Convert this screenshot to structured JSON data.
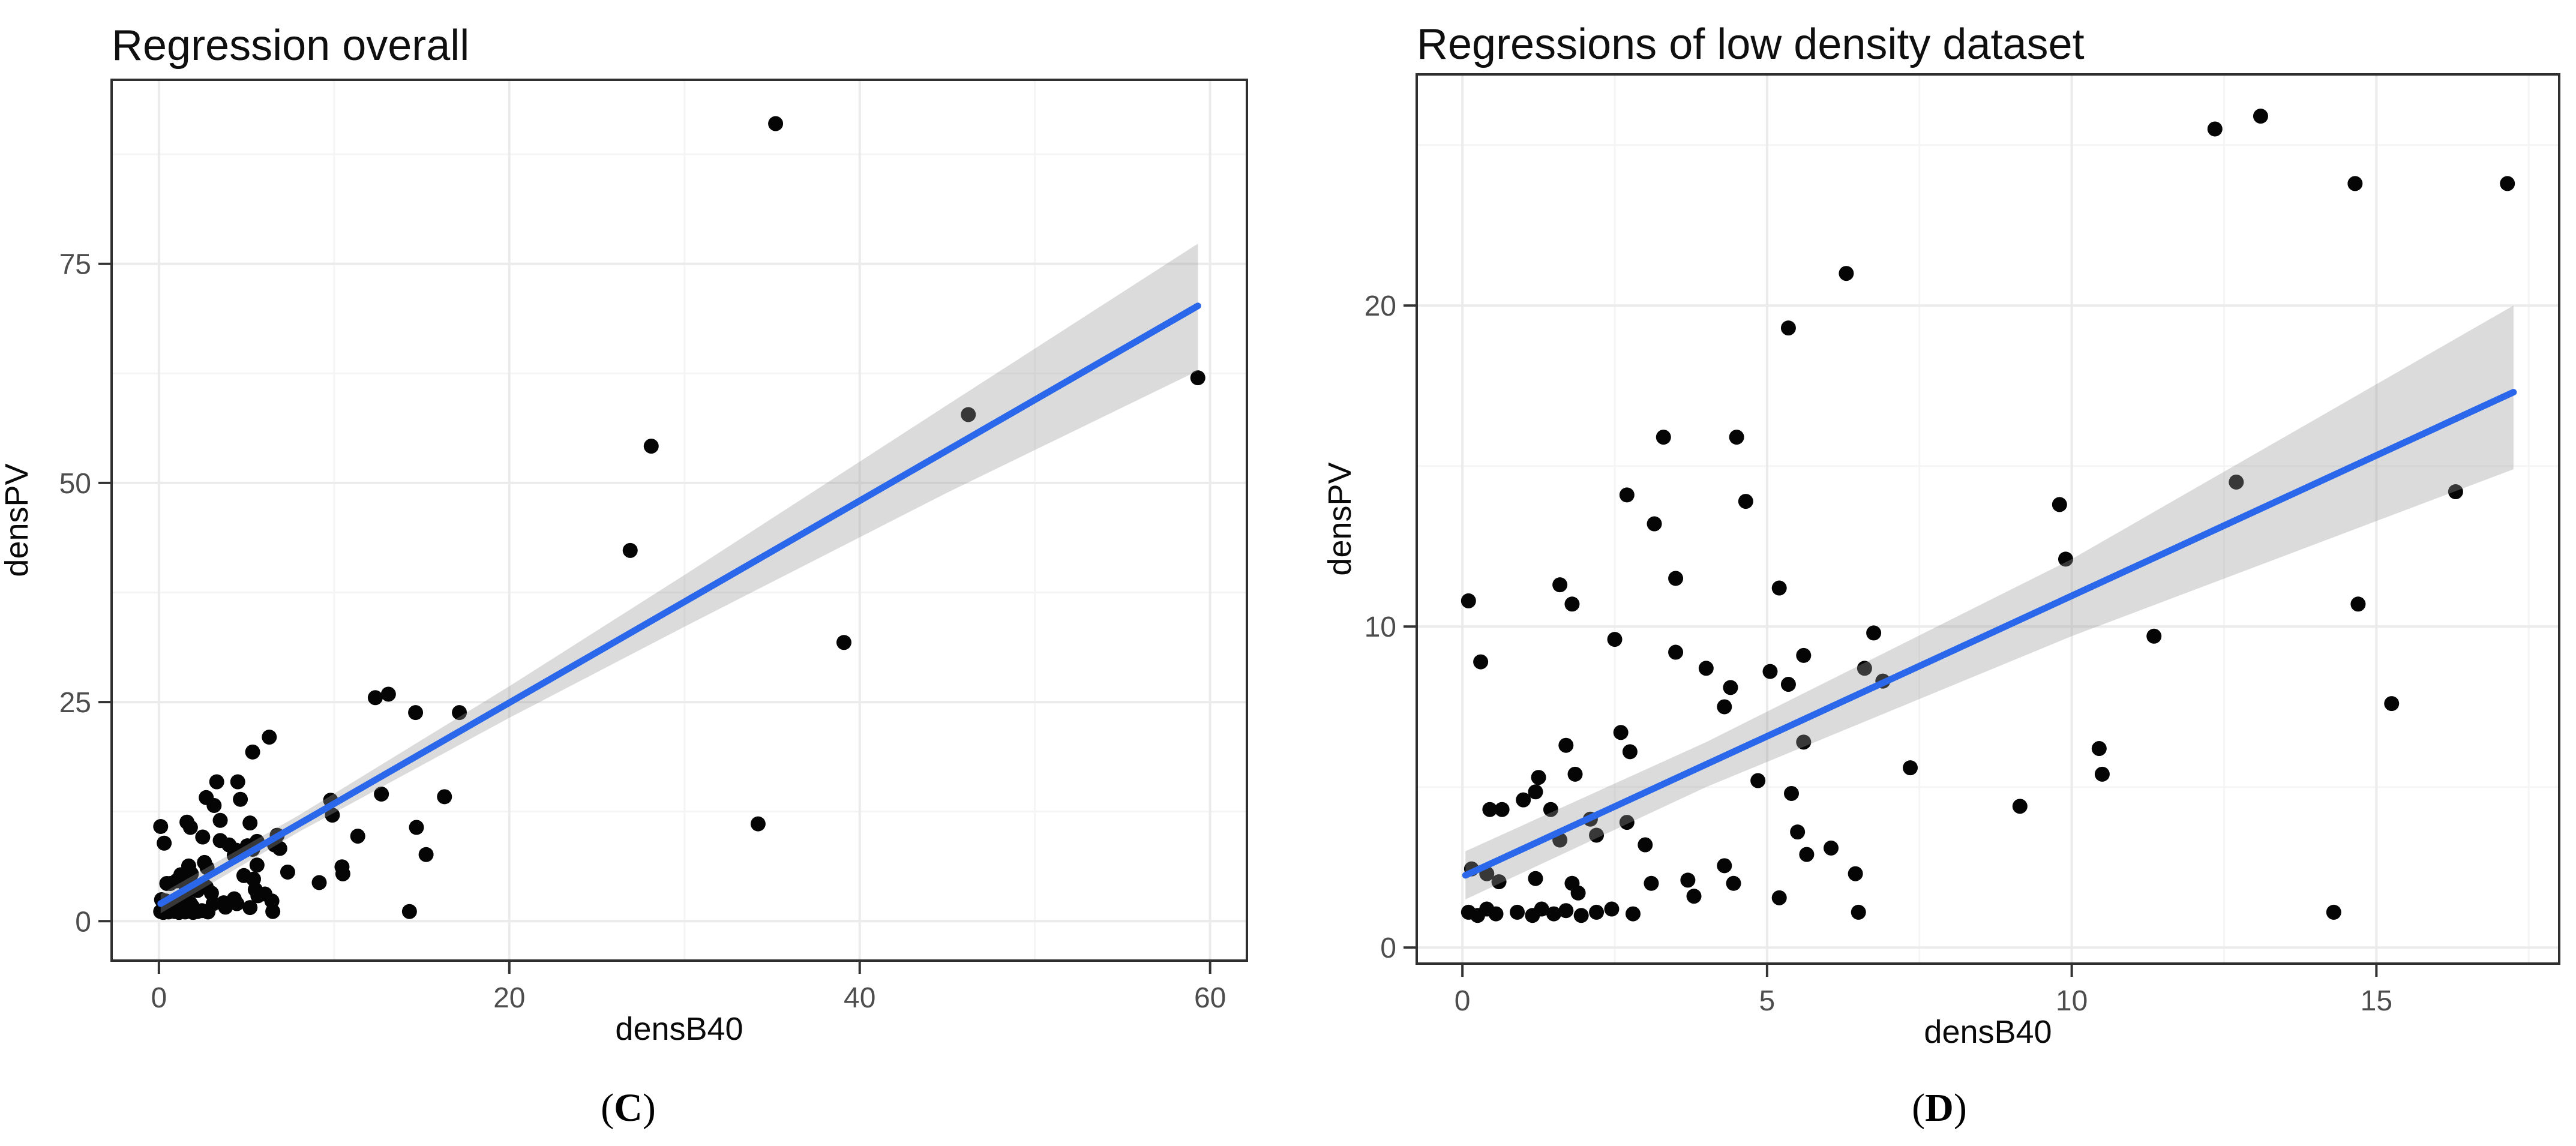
{
  "figure": {
    "background": "#FFFFFF",
    "colors": {
      "regression_line": "#2A67EA",
      "confidence_band": "#999999",
      "confidence_band_opacity": 0.35,
      "grid_major": "#EBEBEB",
      "grid_minor": "#F5F5F5",
      "panel_border": "#2F2F2F",
      "tick_mark": "#333333",
      "tick_label": "#4D4D4D",
      "point": "#050505"
    }
  },
  "datasets": {
    "low_density": [
      [
        0.1,
        10.8
      ],
      [
        0.3,
        8.9
      ],
      [
        0.1,
        1.1
      ],
      [
        0.15,
        2.45
      ],
      [
        0.25,
        1.0
      ],
      [
        0.4,
        2.3
      ],
      [
        0.4,
        1.2
      ],
      [
        0.45,
        4.3
      ],
      [
        0.55,
        1.05
      ],
      [
        0.6,
        2.05
      ],
      [
        0.65,
        4.3
      ],
      [
        0.9,
        1.1
      ],
      [
        1.0,
        4.6
      ],
      [
        1.15,
        1.0
      ],
      [
        1.2,
        4.85
      ],
      [
        1.2,
        2.15
      ],
      [
        1.25,
        5.3
      ],
      [
        1.3,
        1.2
      ],
      [
        1.45,
        4.3
      ],
      [
        1.5,
        1.05
      ],
      [
        1.6,
        11.3
      ],
      [
        1.6,
        3.35
      ],
      [
        1.7,
        6.3
      ],
      [
        1.7,
        1.15
      ],
      [
        1.8,
        10.7
      ],
      [
        1.8,
        2.0
      ],
      [
        1.85,
        5.4
      ],
      [
        1.9,
        1.7
      ],
      [
        1.95,
        1.0
      ],
      [
        2.1,
        4.0
      ],
      [
        2.2,
        3.5
      ],
      [
        2.2,
        1.1
      ],
      [
        2.45,
        1.2
      ],
      [
        2.5,
        9.6
      ],
      [
        2.6,
        6.7
      ],
      [
        2.7,
        14.1
      ],
      [
        2.7,
        3.9
      ],
      [
        2.75,
        6.1
      ],
      [
        2.8,
        1.05
      ],
      [
        3.0,
        3.2
      ],
      [
        3.1,
        2.0
      ],
      [
        3.15,
        13.2
      ],
      [
        3.3,
        15.9
      ],
      [
        3.5,
        11.5
      ],
      [
        3.5,
        9.2
      ],
      [
        3.7,
        2.1
      ],
      [
        3.8,
        1.6
      ],
      [
        4.0,
        8.7
      ],
      [
        4.3,
        7.5
      ],
      [
        4.3,
        2.55
      ],
      [
        4.4,
        8.1
      ],
      [
        4.45,
        2.0
      ],
      [
        4.5,
        15.9
      ],
      [
        4.65,
        13.9
      ],
      [
        4.85,
        5.2
      ],
      [
        5.05,
        8.6
      ],
      [
        5.2,
        11.2
      ],
      [
        5.2,
        1.55
      ],
      [
        5.35,
        19.3
      ],
      [
        5.35,
        8.2
      ],
      [
        5.4,
        4.8
      ],
      [
        5.5,
        3.6
      ],
      [
        5.6,
        9.1
      ],
      [
        5.6,
        6.4
      ],
      [
        5.65,
        2.9
      ],
      [
        6.05,
        3.1
      ],
      [
        6.3,
        21.0
      ],
      [
        6.45,
        2.3
      ],
      [
        6.5,
        1.1
      ],
      [
        6.6,
        8.7
      ],
      [
        6.75,
        9.8
      ],
      [
        6.9,
        8.3
      ],
      [
        7.35,
        5.6
      ],
      [
        9.15,
        4.4
      ],
      [
        9.8,
        13.8
      ],
      [
        9.9,
        12.1
      ],
      [
        10.45,
        6.2
      ],
      [
        10.5,
        5.4
      ],
      [
        11.35,
        9.7
      ],
      [
        12.35,
        25.5
      ],
      [
        12.7,
        14.5
      ],
      [
        13.1,
        25.9
      ],
      [
        14.3,
        1.1
      ],
      [
        14.65,
        23.8
      ],
      [
        14.7,
        10.7
      ],
      [
        15.25,
        7.6
      ],
      [
        16.3,
        14.2
      ],
      [
        17.15,
        23.8
      ]
    ],
    "outliers_overall": [
      [
        26.9,
        42.3
      ],
      [
        28.1,
        54.2
      ],
      [
        34.2,
        11.1
      ],
      [
        35.2,
        91.0
      ],
      [
        39.1,
        31.8
      ],
      [
        46.2,
        57.8
      ],
      [
        59.3,
        62.0
      ]
    ]
  },
  "charts": [
    {
      "title": "Regression overall",
      "xlabel": "densB40",
      "ylabel": "densPV",
      "caption": {
        "open": "(",
        "letter": "C",
        "close": ")"
      },
      "type": "scatter",
      "point_sets": [
        "low_density",
        "outliers_overall"
      ],
      "xlim": [
        -2.7,
        62.1
      ],
      "ylim": [
        -4.5,
        96.0
      ],
      "x_major": [
        0,
        20,
        40,
        60
      ],
      "x_minor": [
        10,
        30,
        50
      ],
      "y_major": [
        0,
        25,
        50,
        75
      ],
      "y_minor": [
        12.5,
        37.5,
        62.5,
        87.5
      ],
      "x_tick_labels": [
        "0",
        "20",
        "40",
        "60"
      ],
      "y_tick_labels": [
        "0",
        "25",
        "50",
        "75"
      ],
      "regression": {
        "x": [
          0.1,
          59.3
        ],
        "y": [
          2.0,
          70.2
        ]
      },
      "band": {
        "x": [
          0.1,
          8.0,
          20.0,
          30.0,
          45.0,
          59.3
        ],
        "lower": [
          0.9,
          10.2,
          23.2,
          33.6,
          48.9,
          62.8
        ],
        "upper": [
          3.1,
          12.1,
          26.8,
          39.5,
          58.9,
          77.3
        ]
      }
    },
    {
      "title": "Regressions of low density dataset",
      "xlabel": "densB40",
      "ylabel": "densPV",
      "caption": {
        "open": "(",
        "letter": "D",
        "close": ")"
      },
      "type": "scatter",
      "point_sets": [
        "low_density"
      ],
      "xlim": [
        -0.75,
        18.0
      ],
      "ylim": [
        -0.5,
        27.2
      ],
      "x_major": [
        0,
        5,
        10,
        15
      ],
      "x_minor": [
        2.5,
        7.5,
        12.5,
        17.5
      ],
      "y_major": [
        0,
        10,
        20
      ],
      "y_minor": [
        5,
        15,
        25
      ],
      "x_tick_labels": [
        "0",
        "5",
        "10",
        "15"
      ],
      "y_tick_labels": [
        "0",
        "10",
        "20"
      ],
      "regression": {
        "x": [
          0.05,
          17.25
        ],
        "y": [
          2.25,
          17.3
        ]
      },
      "band": {
        "x": [
          0.05,
          4.0,
          10.0,
          17.25
        ],
        "lower": [
          1.5,
          5.0,
          9.7,
          14.9
        ],
        "upper": [
          3.0,
          6.4,
          12.1,
          20.0
        ]
      }
    }
  ]
}
